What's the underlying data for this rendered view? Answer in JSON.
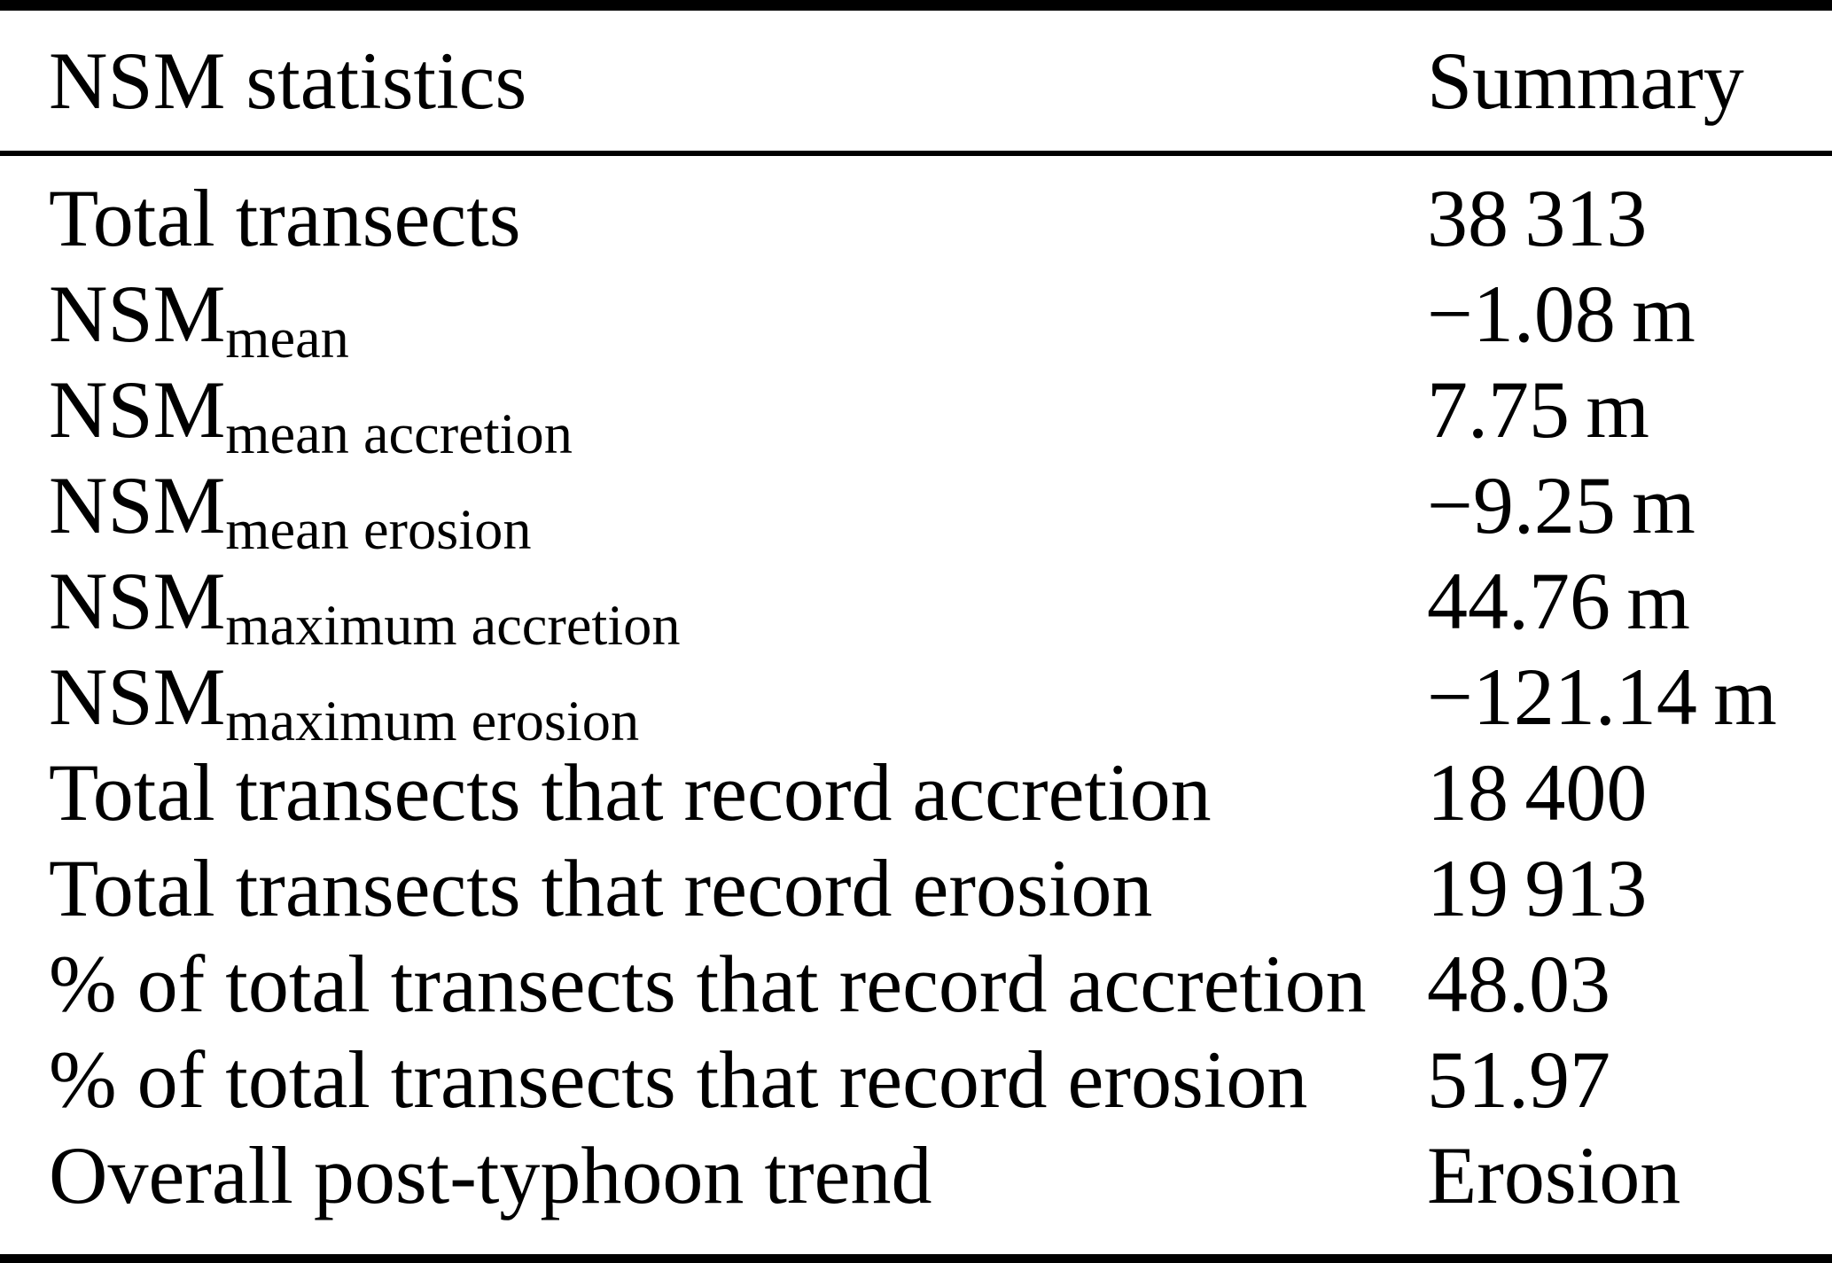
{
  "table": {
    "columns": [
      {
        "label": "NSM statistics"
      },
      {
        "label": "Summary"
      }
    ],
    "rows": [
      {
        "label": "Total transects",
        "sub": "",
        "value": "38 313"
      },
      {
        "label": "NSM",
        "sub": "mean",
        "value": "−1.08 m"
      },
      {
        "label": "NSM",
        "sub": "mean accretion",
        "value": "7.75 m"
      },
      {
        "label": "NSM",
        "sub": "mean erosion",
        "value": "−9.25 m"
      },
      {
        "label": "NSM",
        "sub": "maximum accretion",
        "value": "44.76 m"
      },
      {
        "label": "NSM",
        "sub": "maximum erosion",
        "value": "−121.14 m"
      },
      {
        "label": "Total transects that record accretion",
        "sub": "",
        "value": "18 400"
      },
      {
        "label": "Total transects that record erosion",
        "sub": "",
        "value": "19 913"
      },
      {
        "label": "% of total transects that record accretion",
        "sub": "",
        "value": "48.03"
      },
      {
        "label": "% of total transects that record erosion",
        "sub": "",
        "value": "51.97"
      },
      {
        "label": "Overall post-typhoon trend",
        "sub": "",
        "value": "Erosion"
      }
    ]
  },
  "colors": {
    "text": "#000000",
    "background": "#ffffff",
    "rule": "#000000"
  }
}
